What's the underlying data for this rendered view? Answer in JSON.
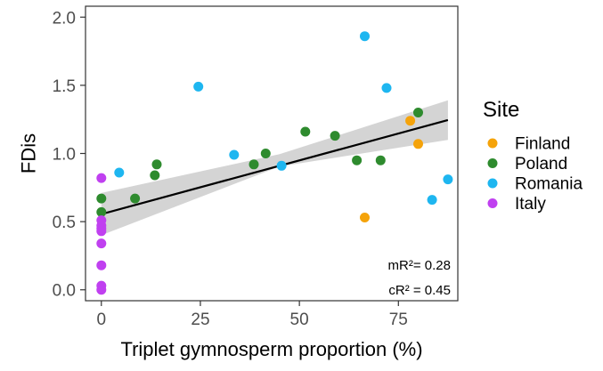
{
  "chart_data": {
    "type": "scatter",
    "xlabel": "Triplet gymnosperm proportion (%)",
    "ylabel": "FDis",
    "xlim": [
      -4,
      90
    ],
    "ylim": [
      -0.08,
      2.08
    ],
    "x_ticks": [
      0,
      25,
      50,
      75
    ],
    "y_ticks": [
      0.0,
      0.5,
      1.0,
      1.5,
      2.0
    ],
    "x_tick_labels": [
      "0",
      "25",
      "50",
      "75"
    ],
    "y_tick_labels": [
      "0.0",
      "0.5",
      "1.0",
      "1.5",
      "2.0"
    ],
    "grid": false,
    "legend": {
      "title": "Site",
      "placement": "right"
    },
    "series": [
      {
        "name": "Finland",
        "color": "#F5A30A",
        "points": [
          [
            66.5,
            0.53
          ],
          [
            78.0,
            1.24
          ],
          [
            80.0,
            1.07
          ]
        ]
      },
      {
        "name": "Poland",
        "color": "#2E8B2E",
        "points": [
          [
            0,
            0.67
          ],
          [
            0,
            0.57
          ],
          [
            8.5,
            0.67
          ],
          [
            13.5,
            0.84
          ],
          [
            14.0,
            0.92
          ],
          [
            38.5,
            0.92
          ],
          [
            41.5,
            1.0
          ],
          [
            51.5,
            1.16
          ],
          [
            59.0,
            1.13
          ],
          [
            64.5,
            0.95
          ],
          [
            70.5,
            0.95
          ],
          [
            80.0,
            1.3
          ]
        ]
      },
      {
        "name": "Romania",
        "color": "#1EB6F0",
        "points": [
          [
            4.5,
            0.86
          ],
          [
            24.5,
            1.49
          ],
          [
            33.5,
            0.99
          ],
          [
            45.5,
            0.91
          ],
          [
            66.5,
            1.86
          ],
          [
            72.0,
            1.48
          ],
          [
            83.5,
            0.66
          ],
          [
            87.5,
            0.81
          ]
        ]
      },
      {
        "name": "Italy",
        "color": "#C040F0",
        "points": [
          [
            0,
            0.82
          ],
          [
            0,
            0.51
          ],
          [
            0,
            0.47
          ],
          [
            0,
            0.45
          ],
          [
            0,
            0.43
          ],
          [
            0,
            0.34
          ],
          [
            0,
            0.18
          ],
          [
            0,
            0.03
          ],
          [
            0,
            0.0
          ]
        ]
      }
    ],
    "regression": {
      "x": [
        0,
        87.5
      ],
      "y": [
        0.555,
        1.245
      ],
      "ci_lower": [
        0.4,
        1.1
      ],
      "ci_upper": [
        0.71,
        1.39
      ],
      "ci_mid_lower": 0.905,
      "ci_mid_upper": 0.995,
      "ci_mid_x": 45
    },
    "annotations": {
      "mr2": "mR²= 0.28",
      "cr2": "cR² = 0.45"
    }
  }
}
